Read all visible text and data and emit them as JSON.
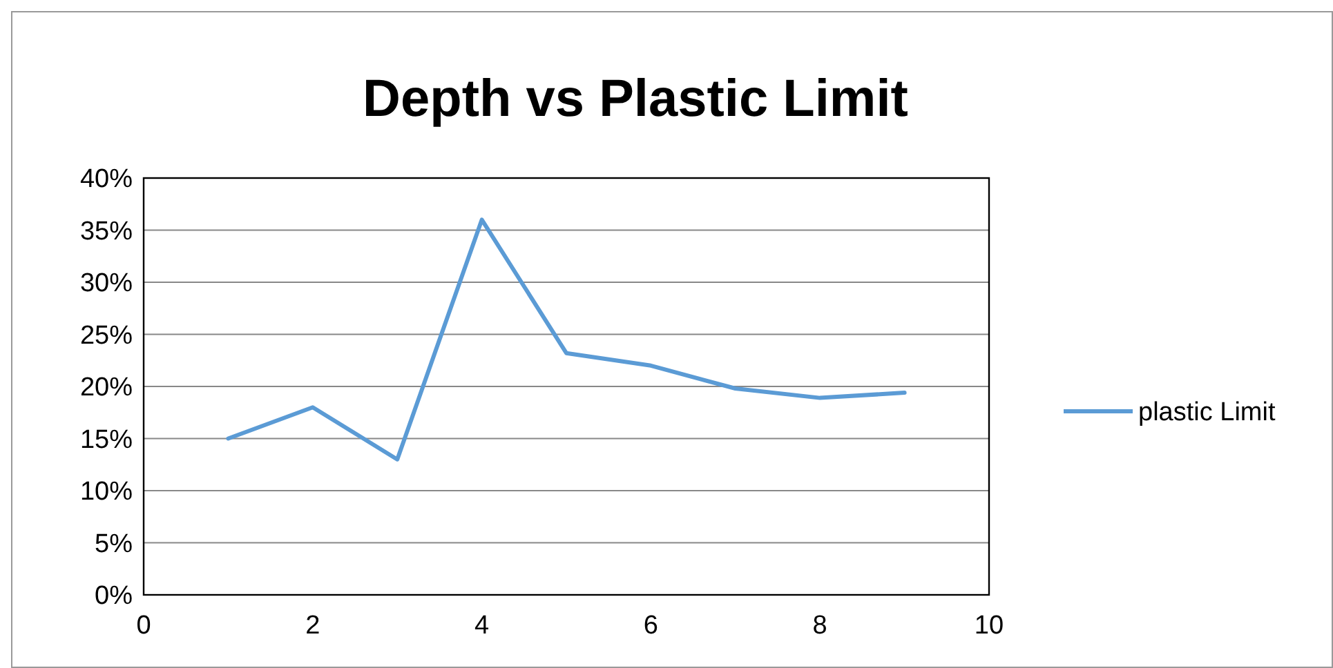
{
  "chart_data": {
    "type": "line",
    "title": "Depth vs Plastic Limit",
    "x": [
      1,
      2,
      3,
      4,
      5,
      6,
      7,
      8,
      9
    ],
    "series": [
      {
        "name": "plastic Limit",
        "color": "#5b9bd5",
        "values": [
          15,
          18,
          13,
          36,
          23.2,
          22,
          19.8,
          18.9,
          19.4
        ]
      }
    ],
    "xlim": [
      0,
      10
    ],
    "xticks": [
      0,
      2,
      4,
      6,
      8,
      10
    ],
    "ylim": [
      0,
      40
    ],
    "yticks": [
      {
        "value": 0,
        "label": "0%"
      },
      {
        "value": 5,
        "label": "5%"
      },
      {
        "value": 10,
        "label": "10%"
      },
      {
        "value": 15,
        "label": "15%"
      },
      {
        "value": 20,
        "label": "20%"
      },
      {
        "value": 25,
        "label": "25%"
      },
      {
        "value": 30,
        "label": "30%"
      },
      {
        "value": 35,
        "label": "35%"
      },
      {
        "value": 40,
        "label": "40%"
      }
    ],
    "grid": "y",
    "legend": "right",
    "marker": "none",
    "line_style": "solid"
  }
}
